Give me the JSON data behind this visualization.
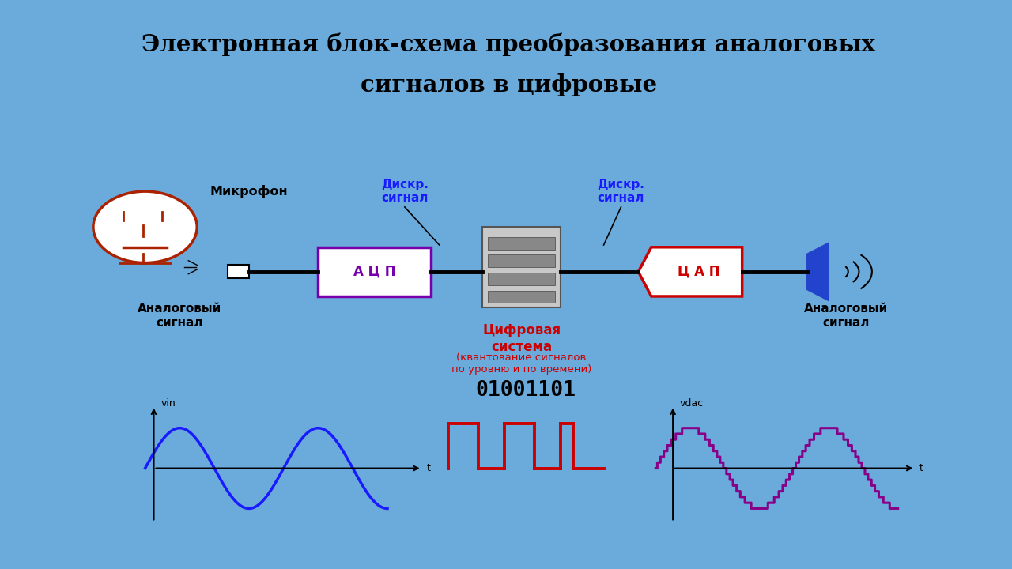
{
  "title_line1": "Электронная блок-схема преобразования аналоговых",
  "title_line2": "сигналов в цифровые",
  "title_fontsize": 21,
  "title_bg": "#dce8f4",
  "outer_bg_top": "#5a9fd4",
  "outer_bg": "#6aabdc",
  "inner_bg": "#ffffff",
  "label_mikrofon": "Микрофон",
  "label_analog_left": "Аналоговый\nсигнал",
  "label_acp": "А Ц П",
  "label_diskr_left": "Дискр.\nсигнал",
  "label_cifr_sistema": "Цифровая\nсистема",
  "label_kvant": "(квантование сигналов\nпо уровню и по времени)",
  "label_diskr_right": "Дискр.\nсигнал",
  "label_cap": "Ц А П",
  "label_analog_right": "Аналоговый\nсигнал",
  "label_vin": "vin",
  "label_t_left": "t",
  "label_binary": "01001101",
  "label_vdac": "vdac",
  "label_t_right": "t",
  "color_blue": "#1a1aff",
  "color_red": "#cc0000",
  "color_purple": "#880088",
  "color_black": "#000000",
  "color_darkblue": "#000080",
  "color_face_red": "#aa2200",
  "color_acp_purple": "#7700aa",
  "color_cap_red": "#cc0000",
  "color_speaker_blue": "#2244cc"
}
